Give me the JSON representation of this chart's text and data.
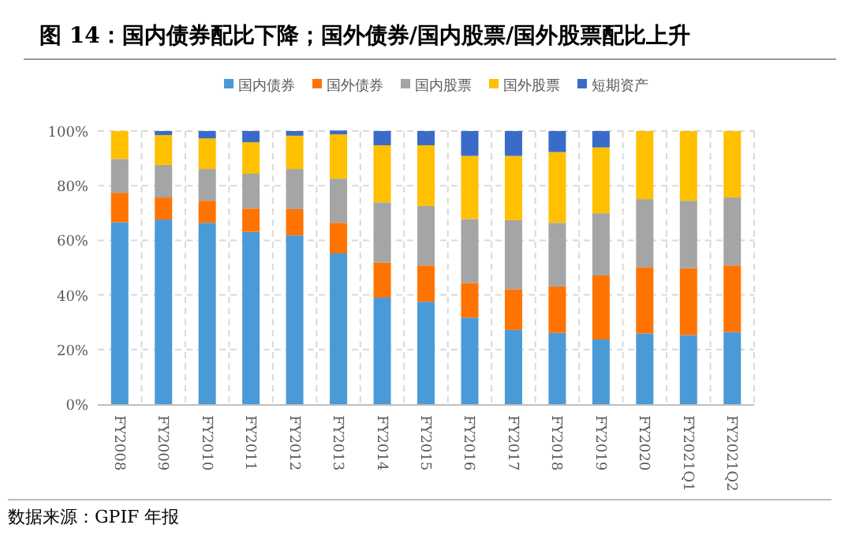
{
  "chart_data": {
    "type": "bar",
    "stacked": true,
    "title": "图 14：国内债券配比下降；国外债券/国内股票/国外股票配比上升",
    "annotations": [
      "数据来源：GPIF 年报"
    ],
    "categories": [
      "FY2008",
      "FY2009",
      "FY2010",
      "FY2011",
      "FY2012",
      "FY2013",
      "FY2014",
      "FY2015",
      "FY2016",
      "FY2017",
      "FY2018",
      "FY2019",
      "FY2020",
      "FY2021Q1",
      "FY2021Q2"
    ],
    "series": [
      {
        "name": "国内债券",
        "color": "#4a9ad8",
        "values": [
          66.6,
          67.6,
          66.4,
          63.1,
          61.8,
          55.2,
          39.0,
          37.5,
          31.7,
          27.2,
          26.1,
          23.7,
          25.9,
          25.3,
          26.4
        ]
      },
      {
        "name": "国外债券",
        "color": "#ff7300",
        "values": [
          10.8,
          8.1,
          8.1,
          8.5,
          9.6,
          11.2,
          12.9,
          13.3,
          12.7,
          14.9,
          17.0,
          23.4,
          24.3,
          24.5,
          24.4
        ]
      },
      {
        "name": "国内股票",
        "color": "#a5a5a5",
        "values": [
          12.4,
          11.9,
          11.6,
          12.8,
          14.7,
          16.2,
          22.0,
          21.8,
          23.4,
          25.3,
          23.3,
          22.8,
          24.9,
          24.7,
          24.9
        ]
      },
      {
        "name": "国外股票",
        "color": "#ffc000",
        "values": [
          10.2,
          10.9,
          11.2,
          11.5,
          12.2,
          16.2,
          20.9,
          22.2,
          23.1,
          23.5,
          25.9,
          24.1,
          24.9,
          25.5,
          24.3
        ]
      },
      {
        "name": "短期资产",
        "color": "#3a6bc9",
        "values": [
          0,
          1.5,
          2.7,
          4.1,
          1.7,
          1.4,
          5.2,
          5.2,
          9.1,
          9.1,
          7.7,
          6.0,
          0,
          0,
          0
        ]
      }
    ],
    "ylim": [
      0,
      100
    ],
    "yticks": [
      {
        "value": 0,
        "label": "0%"
      },
      {
        "value": 20,
        "label": "20%"
      },
      {
        "value": 40,
        "label": "40%"
      },
      {
        "value": 60,
        "label": "60%"
      },
      {
        "value": 80,
        "label": "80%"
      },
      {
        "value": 100,
        "label": "100%"
      }
    ],
    "grid": true,
    "legend": "top"
  }
}
